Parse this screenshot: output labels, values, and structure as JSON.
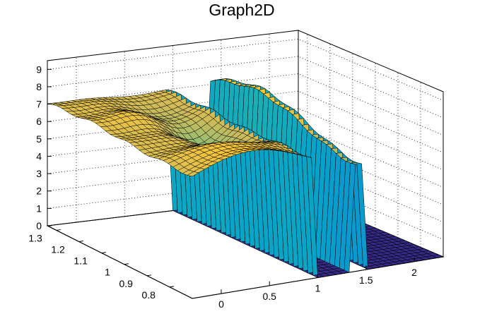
{
  "chart_data": {
    "type": "surface3d",
    "title": "Graph2D",
    "xlabel": "",
    "ylabel": "",
    "zlabel": "",
    "xlim": [
      -0.3,
      2.3
    ],
    "ylim": [
      0.7,
      1.34
    ],
    "zlim": [
      0,
      9.5
    ],
    "x_ticks": [
      "0",
      "0.5",
      "1",
      "1.5",
      "2"
    ],
    "y_ticks": [
      "0.8",
      "0.9",
      "1",
      "1.1",
      "1.2",
      "1.3"
    ],
    "z_ticks": [
      "0",
      "1",
      "2",
      "3",
      "4",
      "5",
      "6",
      "7",
      "8",
      "9"
    ],
    "grid": true,
    "colormap": "parula",
    "colors": [
      "#352a87",
      "#0f5cdd",
      "#1481d6",
      "#06a4ca",
      "#2eb7a4",
      "#87bf77",
      "#d1bb59",
      "#fec832",
      "#f9fb0e"
    ],
    "surface": {
      "description_free": true,
      "plateau_x_range": [
        -0.3,
        0.95
      ],
      "ridge_x_range": [
        1.37,
        1.47
      ],
      "y_range": [
        0.7,
        1.34
      ],
      "plateau_level_min": 5.5,
      "plateau_level_max": 9.0,
      "floor_level": 0
    }
  }
}
